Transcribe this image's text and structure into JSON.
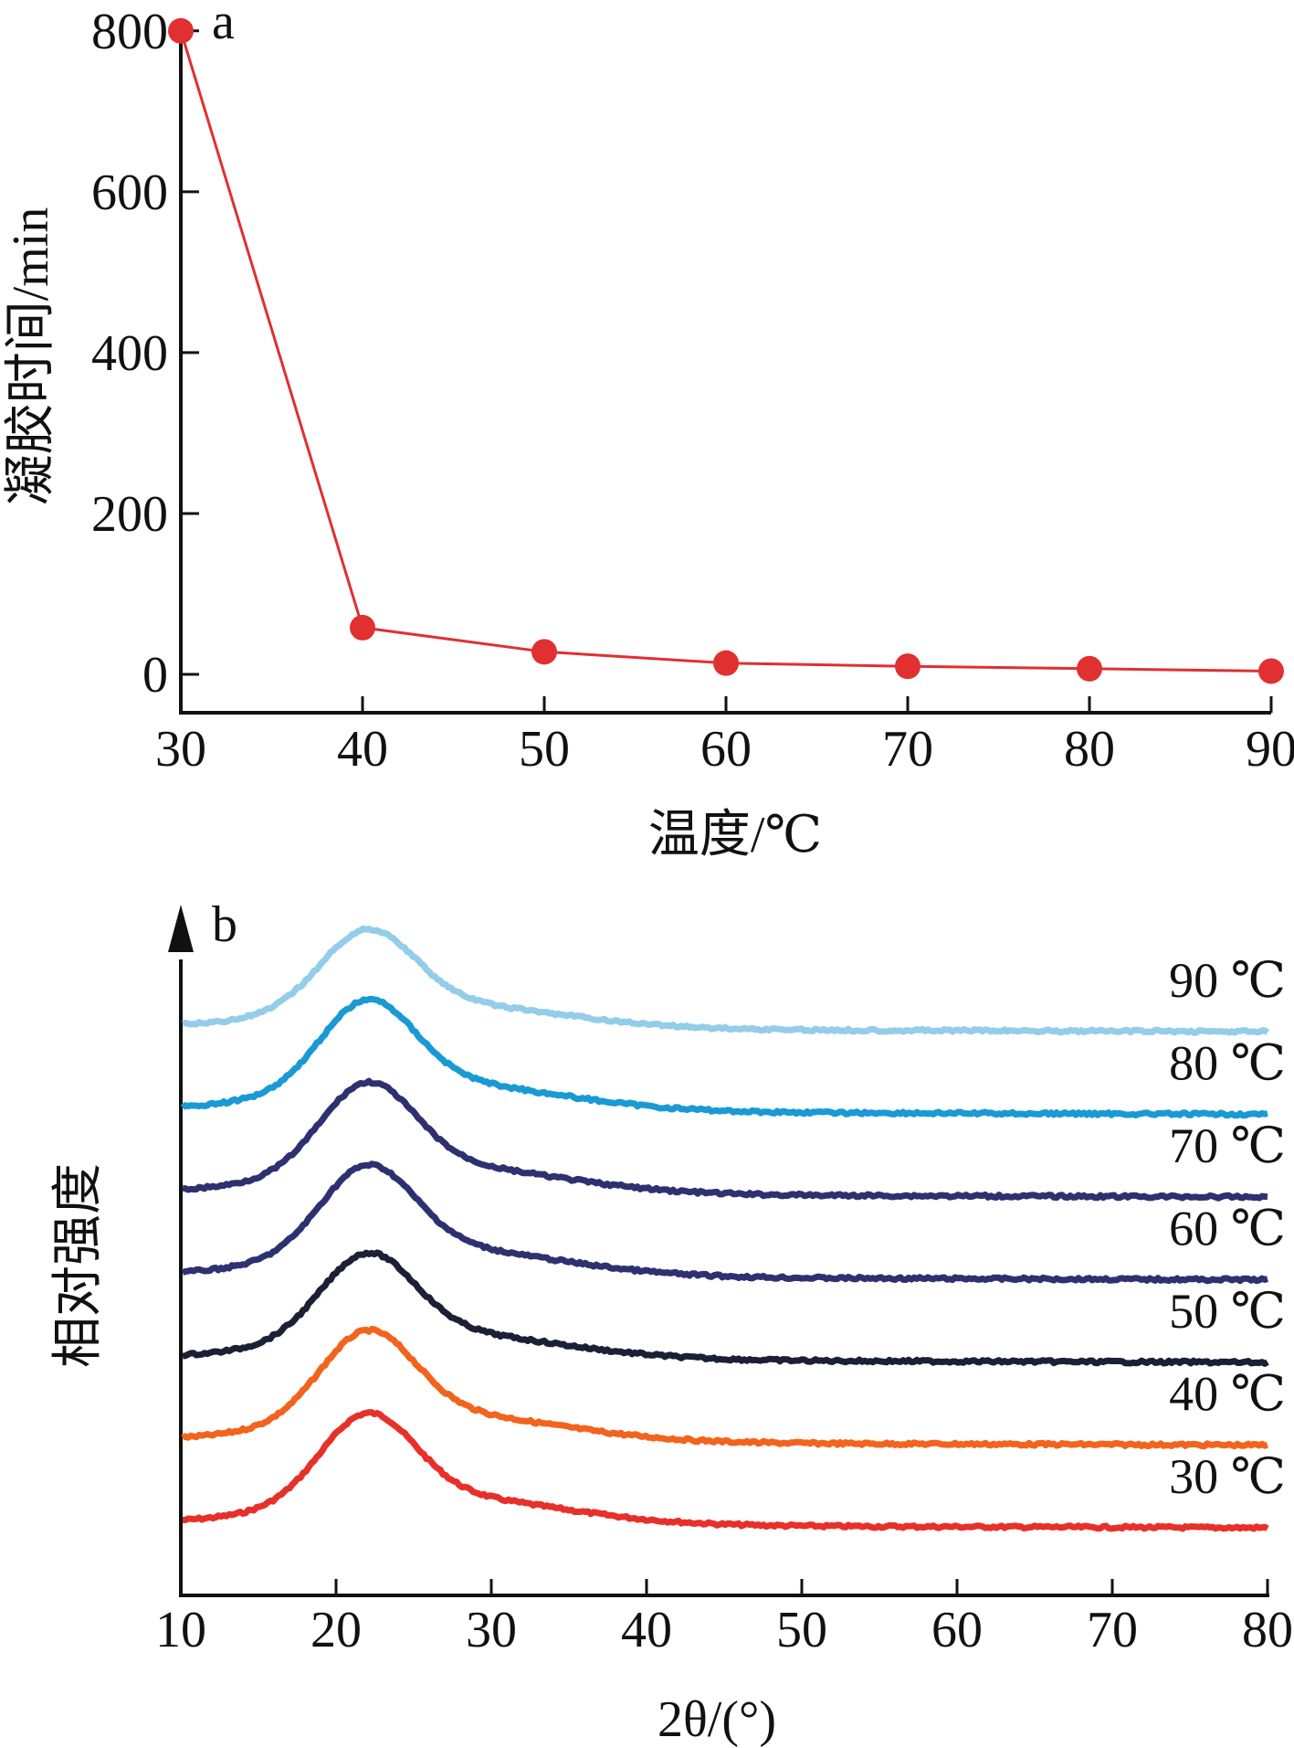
{
  "chart_data": [
    {
      "type": "line",
      "panel_label": "a",
      "xlabel": "温度/℃",
      "ylabel": "凝胶时间/min",
      "x": [
        30,
        40,
        50,
        60,
        70,
        80,
        90
      ],
      "series": [
        {
          "values": [
            800,
            58,
            28,
            14,
            10,
            7,
            4
          ]
        }
      ],
      "xlim": [
        30,
        90
      ],
      "ylim": [
        -50,
        810
      ],
      "xticks": [
        "30",
        "40",
        "50",
        "60",
        "70",
        "80",
        "90"
      ],
      "yticks": [
        "0",
        "200",
        "400",
        "600",
        "800"
      ],
      "grid": false,
      "color": "#e03030"
    },
    {
      "type": "line",
      "panel_label": "b",
      "xlabel": "2θ/(°)",
      "ylabel": "相对强度",
      "xlim": [
        10,
        80
      ],
      "xticks": [
        "10",
        "20",
        "30",
        "40",
        "50",
        "60",
        "70",
        "80"
      ],
      "grid": false,
      "peak_position": 22,
      "series": [
        {
          "name": "30 ℃",
          "color": "#e8302b",
          "offset": 0,
          "peak_height": 0.47,
          "tail": 0.16
        },
        {
          "name": "40 ℃",
          "color": "#f2641e",
          "offset": 1,
          "peak_height": 0.47,
          "tail": 0.16
        },
        {
          "name": "50 ℃",
          "color": "#1b2035",
          "offset": 2,
          "peak_height": 0.45,
          "tail": 0.15
        },
        {
          "name": "60 ℃",
          "color": "#2e3170",
          "offset": 3,
          "peak_height": 0.47,
          "tail": 0.16
        },
        {
          "name": "70 ℃",
          "color": "#2e3170",
          "offset": 4,
          "peak_height": 0.47,
          "tail": 0.16
        },
        {
          "name": "80 ℃",
          "color": "#1a9ad4",
          "offset": 5,
          "peak_height": 0.47,
          "tail": 0.16
        },
        {
          "name": "90 ℃",
          "color": "#93cde9",
          "offset": 6,
          "peak_height": 0.42,
          "tail": 0.14
        }
      ]
    }
  ]
}
